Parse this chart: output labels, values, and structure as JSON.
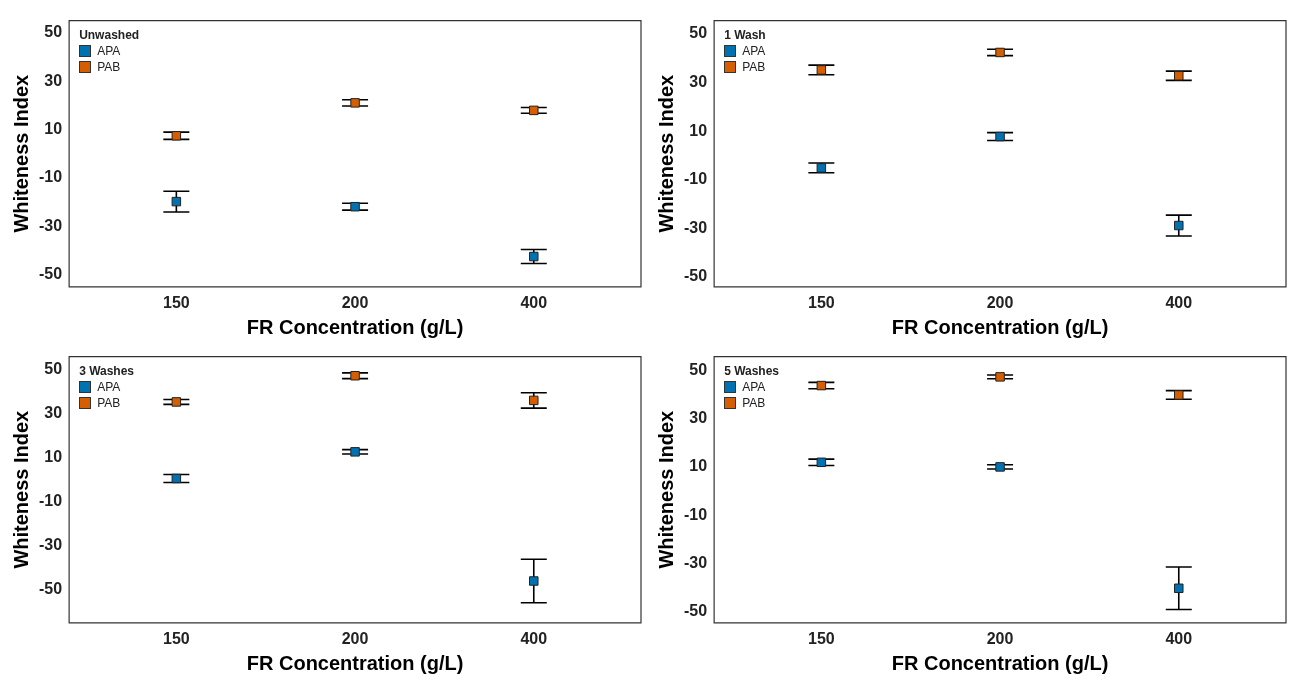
{
  "chart_data": [
    {
      "type": "scatter",
      "legend_title": "Unwashed",
      "xlabel": "FR Concentration (g/L)",
      "ylabel": "Whiteness Index",
      "categories": [
        "150",
        "200",
        "400"
      ],
      "ylim": [
        -55,
        55
      ],
      "yticks": [
        -50,
        -30,
        -10,
        10,
        30,
        50
      ],
      "grid": false,
      "legend": "top left",
      "marker": "square",
      "series": [
        {
          "name": "APA",
          "color": "#0072b2",
          "values": [
            -19.8,
            -21.9,
            -42.5
          ],
          "errors": [
            4.3,
            1.4,
            2.9
          ]
        },
        {
          "name": "PAB",
          "color": "#d55e00",
          "values": [
            7.4,
            21.0,
            17.9
          ],
          "errors": [
            1.5,
            1.3,
            1.2
          ]
        }
      ]
    },
    {
      "type": "scatter",
      "legend_title": "1 Wash",
      "xlabel": "FR Concentration (g/L)",
      "ylabel": "Whiteness Index",
      "categories": [
        "150",
        "200",
        "400"
      ],
      "ylim": [
        -54,
        55.5
      ],
      "yticks": [
        -50,
        -30,
        -10,
        10,
        30,
        50
      ],
      "grid": false,
      "legend": "top left",
      "marker": "square",
      "series": [
        {
          "name": "APA",
          "color": "#0072b2",
          "values": [
            -5.1,
            7.8,
            -28.8
          ],
          "errors": [
            2.0,
            1.6,
            4.3
          ]
        },
        {
          "name": "PAB",
          "color": "#d55e00",
          "values": [
            35.2,
            42.4,
            32.8
          ],
          "errors": [
            2.0,
            1.3,
            1.9
          ]
        }
      ]
    },
    {
      "type": "scatter",
      "legend_title": "3 Washes",
      "xlabel": "FR Concentration (g/L)",
      "ylabel": "Whiteness Index",
      "categories": [
        "150",
        "200",
        "400"
      ],
      "ylim": [
        -65,
        56
      ],
      "yticks": [
        -50,
        -30,
        -10,
        10,
        30,
        50
      ],
      "grid": false,
      "legend": "top left",
      "marker": "square",
      "series": [
        {
          "name": "APA",
          "color": "#0072b2",
          "values": [
            0.6,
            12.7,
            -46.0
          ],
          "errors": [
            1.8,
            1.0,
            9.9
          ]
        },
        {
          "name": "PAB",
          "color": "#d55e00",
          "values": [
            35.4,
            47.3,
            36.1
          ],
          "errors": [
            1.1,
            1.3,
            3.5
          ]
        }
      ]
    },
    {
      "type": "scatter",
      "legend_title": "5 Washes",
      "xlabel": "FR Concentration (g/L)",
      "ylabel": "Whiteness Index",
      "categories": [
        "150",
        "200",
        "400"
      ],
      "ylim": [
        -54.6,
        55.7
      ],
      "yticks": [
        -50,
        -30,
        -10,
        10,
        30,
        50
      ],
      "grid": false,
      "legend": "top left",
      "marker": "square",
      "series": [
        {
          "name": "APA",
          "color": "#0072b2",
          "values": [
            11.9,
            10.0,
            -40.3
          ],
          "errors": [
            1.3,
            0.9,
            8.8
          ]
        },
        {
          "name": "PAB",
          "color": "#d55e00",
          "values": [
            43.7,
            47.3,
            39.8
          ],
          "errors": [
            1.3,
            0.8,
            1.8
          ]
        }
      ]
    }
  ]
}
